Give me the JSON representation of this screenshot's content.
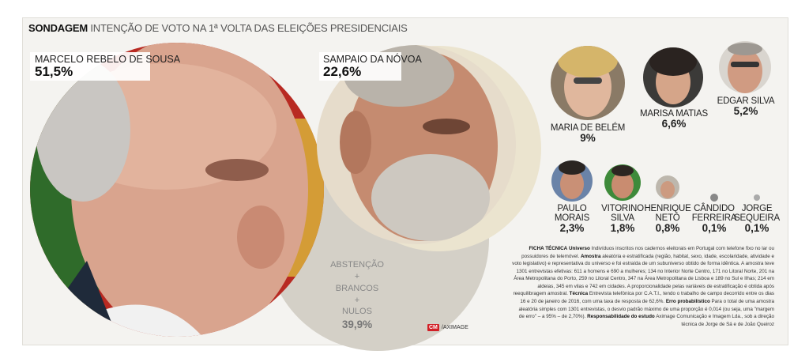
{
  "chart_data": {
    "type": "bubble",
    "title_bold": "SONDAGEM",
    "title": "INTENÇÃO DE VOTO NA 1ª VOLTA DAS ELEIÇÕES PRESIDENCIAIS",
    "candidates": [
      {
        "name": "MARCELO REBELO DE SOUSA",
        "value": 51.5,
        "label": "51,5%"
      },
      {
        "name": "SAMPAIO DA NÓVOA",
        "value": 22.6,
        "label": "22,6%"
      },
      {
        "name": "MARIA DE BELÉM",
        "value": 9,
        "label": "9%"
      },
      {
        "name": "MARISA MATIAS",
        "value": 6.6,
        "label": "6,6%"
      },
      {
        "name": "EDGAR SILVA",
        "value": 5.2,
        "label": "5,2%"
      },
      {
        "name": "PAULO MORAIS",
        "name_lines": [
          "PAULO",
          "MORAIS"
        ],
        "value": 2.3,
        "label": "2,3%"
      },
      {
        "name": "VITORINO SILVA",
        "name_lines": [
          "VITORINO",
          "SILVA"
        ],
        "value": 1.8,
        "label": "1,8%"
      },
      {
        "name": "HENRIQUE NETO",
        "name_lines": [
          "HENRIQUE",
          "NETO"
        ],
        "value": 0.8,
        "label": "0,8%"
      },
      {
        "name": "CÂNDIDO FERREIRA",
        "name_lines": [
          "CÂNDIDO",
          "FERREIRA"
        ],
        "value": 0.1,
        "label": "0,1%"
      },
      {
        "name": "JORGE SEQUEIRA",
        "name_lines": [
          "JORGE",
          "SEQUEIRA"
        ],
        "value": 0.1,
        "label": "0,1%"
      }
    ],
    "abstention": {
      "lines": [
        "ABSTENÇÃO",
        "BRANCOS",
        "NULOS"
      ],
      "plus": "+",
      "value": 39.9,
      "label": "39,9%"
    }
  },
  "ficha": {
    "title": "FICHA TÉCNICA",
    "universo_label": "Universo",
    "universo_text": "Indivíduos inscritos nos cadernos eleitorais em Portugal com telefone fixo no lar ou possuidores de telemóvel.",
    "amostra_label": "Amostra",
    "amostra_text": "aleatória e estratificada (região, habitat, sexo, idade, escolaridade, atividade e voto legislativo) e representativa do universo e foi estraída de um subuniverso obtido de forma idêntica. A amostra teve 1301 entrevistas efetivas: 611 a homens e 690 a mulheres; 134 no Interior Norte Centro, 171 no Litoral Norte, 201 na Área Metropolitana do Porto, 259 no Litoral Centro, 347 na Área Metropolitana de Lisboa e 189 no Sul e Ilhas; 214 em aldeias, 345 em vilas e 742 em cidades. A proporcionalidade pelas variáveis de estratificação é obtida após reequilibragem amostral.",
    "tecnica_label": "Técnica",
    "tecnica_text": "Entrevista telefónica por C.A.T.I., tendo o trabalho de campo decorrido entre os dias 16 e 20 de janeiro de 2016, com uma taxa de resposta de 62,6%.",
    "erro_label": "Erro probabilístico",
    "erro_text": "Para o total de uma amostra aleatória simples com 1301 entrevistas, o desvio padrão máximo de uma proporção é 0,014 (ou seja, uma \"margem de erro\" – a 95% – de 2,70%).",
    "resp_label": "Responsabilidade do estudo",
    "resp_text": "Aximage Comunicação e Imagem Lda., sob a direção técnica de Jorge de Sá e de João Queiroz"
  },
  "credit": {
    "logo": "CM",
    "text": "/AXIMAGE"
  },
  "colors": {
    "abstention_bubble": "#d4d0c7",
    "sampaio_halo": "#ebe4cf",
    "background": "#f4f3f0",
    "brand_red": "#d21f26"
  }
}
